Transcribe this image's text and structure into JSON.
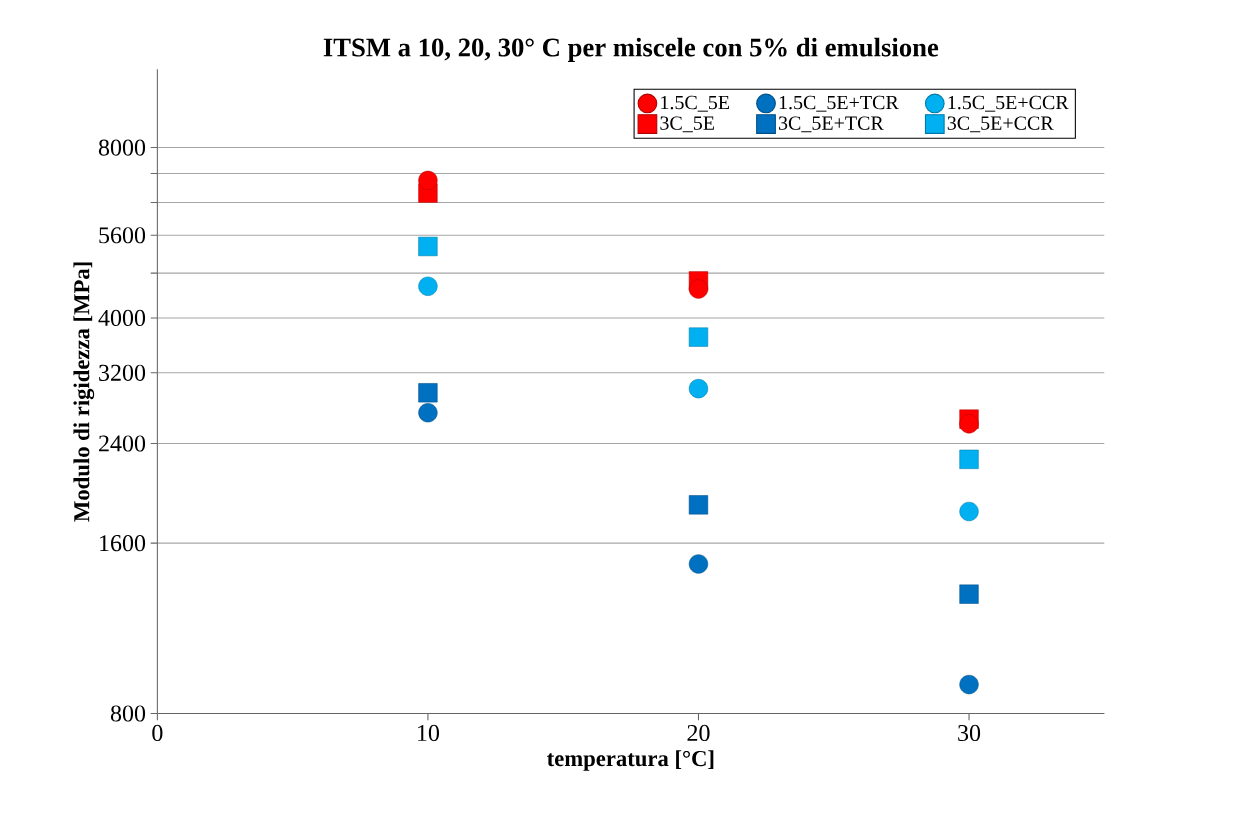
{
  "chart_data": {
    "type": "scatter",
    "title": "ITSM a 10, 20, 30° C per miscele con 5% di emulsione",
    "xlabel": "temperatura [°C]",
    "ylabel": "Modulo di rigidezza [MPa]",
    "x": [
      10,
      20,
      30
    ],
    "series": [
      {
        "name": "1.5C_5E",
        "color": "#ff0000",
        "marker": "circle",
        "values": [
          7000,
          4500,
          2600
        ]
      },
      {
        "name": "1.5C_5E+TCR",
        "color": "#0070c0",
        "marker": "circle",
        "values": [
          2720,
          1470,
          900
        ]
      },
      {
        "name": "1.5C_5E+CCR",
        "color": "#00b0f0",
        "marker": "circle",
        "values": [
          4550,
          3000,
          1820
        ]
      },
      {
        "name": "3C_5E",
        "color": "#ff0000",
        "marker": "square",
        "values": [
          6650,
          4650,
          2650
        ]
      },
      {
        "name": "3C_5E+TCR",
        "color": "#0070c0",
        "marker": "square",
        "values": [
          2950,
          1870,
          1300
        ]
      },
      {
        "name": "3C_5E+CCR",
        "color": "#00b0f0",
        "marker": "square",
        "values": [
          5350,
          3700,
          2250
        ]
      }
    ],
    "log": "y",
    "xlim": [
      0,
      35
    ],
    "xticks": [
      0,
      10,
      20,
      30
    ],
    "ylim": [
      800,
      11000
    ],
    "yticks": [
      800,
      1600,
      2400,
      3200,
      4000,
      {
        "value": 4800,
        "label": null
      },
      5600,
      {
        "value": 6400,
        "label": null
      },
      {
        "value": 7200,
        "label": null
      },
      8000
    ],
    "grid": "y",
    "legend": "top right"
  }
}
